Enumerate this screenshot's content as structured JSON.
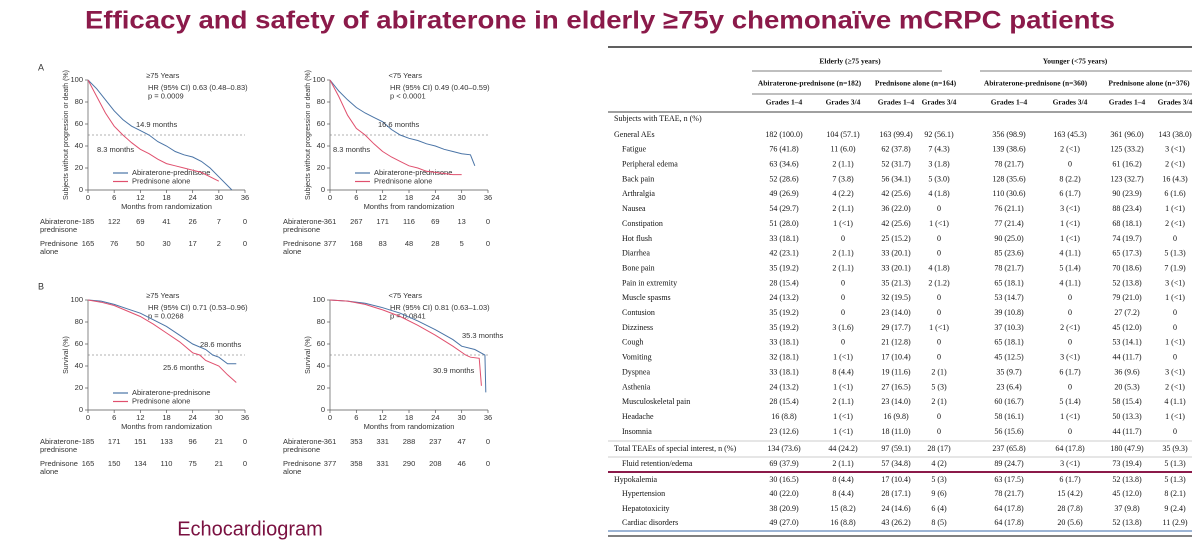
{
  "title": "Efficacy and safety of abiraterone in elderly ≥75y chemonaïve mCRPC patients",
  "footer": "Echocardiogram",
  "panels": [
    {
      "label": "A",
      "plots": [
        {
          "title": "≥75 Years",
          "annotation": [
            "HR (95% CI) 0.63 (0.48–0.83)",
            "p = 0.0009"
          ],
          "ylabel": "Subjects without progression or death (%)",
          "xlabel": "Months from randomization",
          "xlim": [
            0,
            36
          ],
          "xticks": [
            0,
            6,
            12,
            18,
            24,
            30,
            36
          ],
          "ylim": [
            0,
            100
          ],
          "yticks": [
            0,
            20,
            40,
            60,
            80,
            100
          ],
          "reference": 50,
          "legend": true,
          "series": [
            {
              "name": "Abiraterone-prednisone",
              "color": "#4a74a6",
              "x": [
                0,
                2,
                4,
                6,
                8,
                10,
                12,
                14,
                16,
                18,
                20,
                22,
                24,
                26,
                28,
                30,
                33
              ],
              "y": [
                100,
                92,
                82,
                72,
                64,
                58,
                54,
                50,
                44,
                40,
                35,
                32,
                30,
                26,
                20,
                12,
                0
              ]
            },
            {
              "name": "Prednisone alone",
              "color": "#e0506e",
              "x": [
                0,
                2,
                4,
                6,
                8,
                10,
                12,
                14,
                16,
                18,
                20,
                22,
                24,
                26,
                28,
                30
              ],
              "y": [
                100,
                85,
                70,
                58,
                50,
                43,
                37,
                33,
                28,
                24,
                22,
                20,
                18,
                16,
                12,
                8
              ]
            }
          ],
          "medians": [
            "14.9 months",
            "8.3 months"
          ],
          "risk_rows": [
            {
              "name": "Abiraterone-prednisone",
              "values": [
                185,
                122,
                69,
                41,
                26,
                7,
                0
              ]
            },
            {
              "name": "Prednisone alone",
              "values": [
                165,
                76,
                50,
                30,
                17,
                2,
                0
              ]
            }
          ]
        },
        {
          "title": "<75 Years",
          "annotation": [
            "HR (95% CI) 0.49 (0.40–0.59)",
            "p < 0.0001"
          ],
          "ylabel": "Subjects without progression or death (%)",
          "xlabel": "Months from randomization",
          "xlim": [
            0,
            36
          ],
          "xticks": [
            0,
            6,
            12,
            18,
            24,
            30,
            36
          ],
          "ylim": [
            0,
            100
          ],
          "yticks": [
            0,
            20,
            40,
            60,
            80,
            100
          ],
          "reference": 50,
          "legend": true,
          "series": [
            {
              "name": "Abiraterone-prednisone",
              "color": "#4a74a6",
              "x": [
                0,
                2,
                4,
                6,
                8,
                10,
                12,
                14,
                16,
                18,
                20,
                22,
                24,
                26,
                28,
                30,
                32,
                33
              ],
              "y": [
                100,
                90,
                82,
                75,
                70,
                66,
                62,
                55,
                50,
                47,
                45,
                42,
                40,
                37,
                35,
                33,
                32,
                22
              ]
            },
            {
              "name": "Prednisone alone",
              "color": "#e0506e",
              "x": [
                0,
                2,
                4,
                6,
                8,
                10,
                12,
                14,
                16,
                18,
                20,
                22,
                24,
                26,
                28,
                30
              ],
              "y": [
                100,
                85,
                68,
                56,
                50,
                42,
                35,
                30,
                26,
                22,
                20,
                17,
                16,
                15,
                14,
                14
              ]
            }
          ],
          "medians": [
            "16.6 months",
            "8.3 months"
          ],
          "risk_rows": [
            {
              "name": "Abiraterone-prednisone",
              "values": [
                361,
                267,
                171,
                116,
                69,
                13,
                0
              ]
            },
            {
              "name": "Prednisone alone",
              "values": [
                377,
                168,
                83,
                48,
                28,
                5,
                0
              ]
            }
          ]
        }
      ]
    },
    {
      "label": "B",
      "plots": [
        {
          "title": "≥75 Years",
          "annotation": [
            "HR (95% CI) 0.71 (0.53–0.96)",
            "p = 0.0268"
          ],
          "ylabel": "Survival (%)",
          "xlabel": "Months from randomization",
          "xlim": [
            0,
            36
          ],
          "xticks": [
            0,
            6,
            12,
            18,
            24,
            30,
            36
          ],
          "ylim": [
            0,
            100
          ],
          "yticks": [
            0,
            20,
            40,
            60,
            80,
            100
          ],
          "reference": 50,
          "legend": true,
          "series": [
            {
              "name": "Abiraterone-prednisone",
              "color": "#4a74a6",
              "x": [
                0,
                3,
                6,
                9,
                12,
                15,
                18,
                21,
                24,
                27,
                28.6,
                30,
                32,
                34
              ],
              "y": [
                100,
                99,
                96,
                92,
                88,
                82,
                76,
                68,
                60,
                55,
                50,
                48,
                42,
                42
              ]
            },
            {
              "name": "Prednisone alone",
              "color": "#e0506e",
              "x": [
                0,
                3,
                6,
                9,
                12,
                15,
                18,
                21,
                24,
                25.6,
                27,
                30,
                32,
                34
              ],
              "y": [
                100,
                98,
                95,
                90,
                85,
                78,
                70,
                62,
                52,
                50,
                45,
                40,
                32,
                25
              ]
            }
          ],
          "medians": [
            "28.6 months",
            "25.6 months"
          ],
          "risk_rows": [
            {
              "name": "Abiraterone-prednisone",
              "values": [
                185,
                171,
                151,
                133,
                96,
                21,
                0
              ]
            },
            {
              "name": "Prednisone alone",
              "values": [
                165,
                150,
                134,
                110,
                75,
                21,
                0
              ]
            }
          ]
        },
        {
          "title": "<75 Years",
          "annotation": [
            "HR (95% CI) 0.81 (0.63–1.03)",
            "p = 0.0841"
          ],
          "ylabel": "Survival (%)",
          "xlabel": "Months from randomization",
          "xlim": [
            0,
            36
          ],
          "xticks": [
            0,
            6,
            12,
            18,
            24,
            30,
            36
          ],
          "ylim": [
            0,
            100
          ],
          "yticks": [
            0,
            20,
            40,
            60,
            80,
            100
          ],
          "reference": 50,
          "legend": false,
          "series": [
            {
              "color": "#4a74a6",
              "x": [
                0,
                4,
                8,
                12,
                16,
                20,
                24,
                28,
                30,
                33,
                35.3,
                35.5
              ],
              "y": [
                100,
                99,
                97,
                93,
                88,
                81,
                73,
                64,
                58,
                55,
                50,
                16
              ]
            },
            {
              "color": "#e0506e",
              "x": [
                0,
                4,
                8,
                12,
                16,
                20,
                24,
                28,
                30.9,
                32,
                34,
                34.5
              ],
              "y": [
                100,
                99,
                96,
                91,
                85,
                77,
                68,
                58,
                50,
                48,
                47,
                22
              ]
            }
          ],
          "medians": [
            "35.3 months",
            "30.9 months"
          ],
          "risk_rows": [
            {
              "name": "Abiraterone-prednisone",
              "values": [
                361,
                353,
                331,
                288,
                237,
                47,
                0
              ]
            },
            {
              "name": "Prednisone alone",
              "values": [
                377,
                358,
                331,
                290,
                208,
                46,
                0
              ]
            }
          ]
        }
      ]
    }
  ],
  "table": {
    "groups": [
      "Elderly (≥75 years)",
      "Younger (<75 years)"
    ],
    "arms": [
      "Abiraterone-prednisone (n=182)",
      "Prednisone alone (n=164)",
      "Abiraterone-prednisone (n=360)",
      "Prednisone alone (n=376)"
    ],
    "grades": [
      "Grades 1–4",
      "Grades 3/4",
      "Grades 1–4",
      "Grades 3/4",
      "Grades 1–4",
      "Grades 3/4",
      "Grades 1–4",
      "Grades 3/4"
    ],
    "rows": [
      [
        "Subjects with TEAE, n (%)"
      ],
      [
        "General AEs",
        "182 (100.0)",
        "104 (57.1)",
        "163 (99.4)",
        "92 (56.1)",
        "356 (98.9)",
        "163 (45.3)",
        "361 (96.0)",
        "143 (38.0)"
      ],
      [
        "Fatigue",
        "76 (41.8)",
        "11 (6.0)",
        "62 (37.8)",
        "7 (4.3)",
        "139 (38.6)",
        "2 (<1)",
        "125 (33.2)",
        "3 (<1)"
      ],
      [
        "Peripheral edema",
        "63 (34.6)",
        "2 (1.1)",
        "52 (31.7)",
        "3 (1.8)",
        "78 (21.7)",
        "0",
        "61 (16.2)",
        "2 (<1)"
      ],
      [
        "Back pain",
        "52 (28.6)",
        "7 (3.8)",
        "56 (34.1)",
        "5 (3.0)",
        "128 (35.6)",
        "8 (2.2)",
        "123 (32.7)",
        "16 (4.3)"
      ],
      [
        "Arthralgia",
        "49 (26.9)",
        "4 (2.2)",
        "42 (25.6)",
        "4 (1.8)",
        "110 (30.6)",
        "6 (1.7)",
        "90 (23.9)",
        "6 (1.6)"
      ],
      [
        "Nausea",
        "54 (29.7)",
        "2 (1.1)",
        "36 (22.0)",
        "0",
        "76 (21.1)",
        "3 (<1)",
        "88 (23.4)",
        "1 (<1)"
      ],
      [
        "Constipation",
        "51 (28.0)",
        "1 (<1)",
        "42 (25.6)",
        "1 (<1)",
        "77 (21.4)",
        "1 (<1)",
        "68 (18.1)",
        "2 (<1)"
      ],
      [
        "Hot flush",
        "33 (18.1)",
        "0",
        "25 (15.2)",
        "0",
        "90 (25.0)",
        "1 (<1)",
        "74 (19.7)",
        "0"
      ],
      [
        "Diarrhea",
        "42 (23.1)",
        "2 (1.1)",
        "33 (20.1)",
        "0",
        "85 (23.6)",
        "4 (1.1)",
        "65 (17.3)",
        "5 (1.3)"
      ],
      [
        "Bone pain",
        "35 (19.2)",
        "2 (1.1)",
        "33 (20.1)",
        "4 (1.8)",
        "78 (21.7)",
        "5 (1.4)",
        "70 (18.6)",
        "7 (1.9)"
      ],
      [
        "Pain in extremity",
        "28 (15.4)",
        "0",
        "35 (21.3)",
        "2 (1.2)",
        "65 (18.1)",
        "4 (1.1)",
        "52 (13.8)",
        "3 (<1)"
      ],
      [
        "Muscle spasms",
        "24 (13.2)",
        "0",
        "32 (19.5)",
        "0",
        "53 (14.7)",
        "0",
        "79 (21.0)",
        "1 (<1)"
      ],
      [
        "Contusion",
        "35 (19.2)",
        "0",
        "23 (14.0)",
        "0",
        "39 (10.8)",
        "0",
        "27 (7.2)",
        "0"
      ],
      [
        "Dizziness",
        "35 (19.2)",
        "3 (1.6)",
        "29 (17.7)",
        "1 (<1)",
        "37 (10.3)",
        "2 (<1)",
        "45 (12.0)",
        "0"
      ],
      [
        "Cough",
        "33 (18.1)",
        "0",
        "21 (12.8)",
        "0",
        "65 (18.1)",
        "0",
        "53 (14.1)",
        "1 (<1)"
      ],
      [
        "Vomiting",
        "32 (18.1)",
        "1 (<1)",
        "17 (10.4)",
        "0",
        "45 (12.5)",
        "3 (<1)",
        "44 (11.7)",
        "0"
      ],
      [
        "Dyspnea",
        "33 (18.1)",
        "8 (4.4)",
        "19 (11.6)",
        "2 (1)",
        "35 (9.7)",
        "6 (1.7)",
        "36 (9.6)",
        "3 (<1)"
      ],
      [
        "Asthenia",
        "24 (13.2)",
        "1 (<1)",
        "27 (16.5)",
        "5 (3)",
        "23 (6.4)",
        "0",
        "20 (5.3)",
        "2 (<1)"
      ],
      [
        "Musculoskeletal pain",
        "28 (15.4)",
        "2 (1.1)",
        "23 (14.0)",
        "2 (1)",
        "60 (16.7)",
        "5 (1.4)",
        "58 (15.4)",
        "4 (1.1)"
      ],
      [
        "Headache",
        "16 (8.8)",
        "1 (<1)",
        "16 (9.8)",
        "0",
        "58 (16.1)",
        "1 (<1)",
        "50 (13.3)",
        "1 (<1)"
      ],
      [
        "Insomnia",
        "23 (12.6)",
        "1 (<1)",
        "18 (11.0)",
        "0",
        "56 (15.6)",
        "0",
        "44 (11.7)",
        "0"
      ],
      [
        "Total TEAEs of special interest, n (%)",
        "134 (73.6)",
        "44 (24.2)",
        "97 (59.1)",
        "28 (17)",
        "237 (65.8)",
        "64 (17.8)",
        "180 (47.9)",
        "35 (9.3)"
      ],
      [
        "Fluid retention/edema",
        "69 (37.9)",
        "2 (1.1)",
        "57 (34.8)",
        "4 (2)",
        "89 (24.7)",
        "3 (<1)",
        "73 (19.4)",
        "5 (1.3)"
      ],
      [
        "Hypokalemia",
        "30 (16.5)",
        "8 (4.4)",
        "17 (10.4)",
        "5 (3)",
        "63 (17.5)",
        "6 (1.7)",
        "52 (13.8)",
        "5 (1.3)"
      ],
      [
        "Hypertension",
        "40 (22.0)",
        "8 (4.4)",
        "28 (17.1)",
        "9 (6)",
        "78 (21.7)",
        "15 (4.2)",
        "45 (12.0)",
        "8 (2.1)"
      ],
      [
        "Hepatotoxicity",
        "38 (20.9)",
        "15 (8.2)",
        "24 (14.6)",
        "6 (4)",
        "64 (17.8)",
        "28 (7.8)",
        "37 (9.8)",
        "9 (2.4)"
      ],
      [
        "Cardiac disorders",
        "49 (27.0)",
        "16 (8.8)",
        "43 (26.2)",
        "8 (5)",
        "64 (17.8)",
        "20 (5.6)",
        "52 (13.8)",
        "11 (2.9)"
      ]
    ]
  }
}
